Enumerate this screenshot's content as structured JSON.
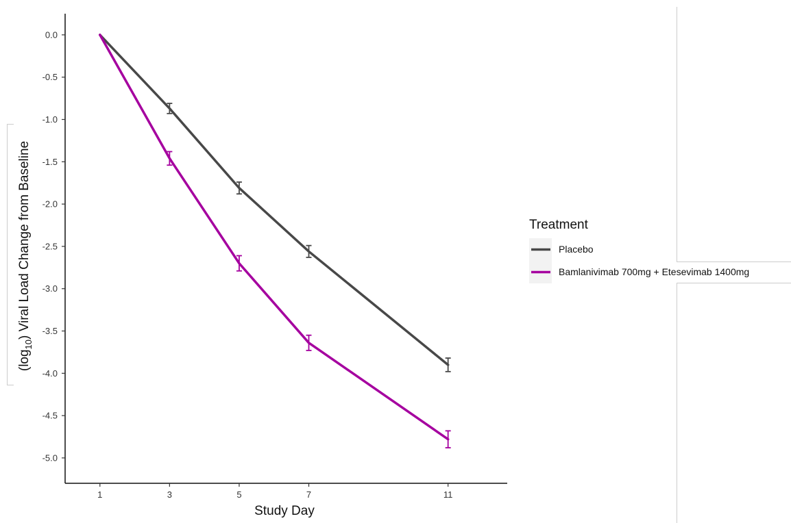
{
  "chart_data": {
    "type": "line",
    "xlabel": "Study Day",
    "ylabel_parts": [
      "(log",
      "10",
      ") Viral Load Change from Baseline"
    ],
    "x": [
      1,
      3,
      5,
      7,
      11
    ],
    "x_ticks": [
      "1",
      "3",
      "5",
      "7",
      "11"
    ],
    "y_ticks": [
      "0.0",
      "-0.5",
      "-1.0",
      "-1.5",
      "-2.0",
      "-2.5",
      "-3.0",
      "-3.5",
      "-4.0",
      "-4.5",
      "-5.0"
    ],
    "xlim": [
      0,
      12.7
    ],
    "ylim": [
      -5.3,
      0.25
    ],
    "grid": false,
    "legend": {
      "title": "Treatment",
      "placement": "right"
    },
    "series": [
      {
        "name": "Placebo",
        "color": "#484848",
        "values": [
          0.0,
          -0.87,
          -1.81,
          -2.56,
          -3.9
        ],
        "error": [
          0.0,
          0.06,
          0.07,
          0.07,
          0.08
        ]
      },
      {
        "name": "Bamlanivimab 700mg + Etesevimab 1400mg",
        "color": "#a5009f",
        "values": [
          0.0,
          -1.46,
          -2.7,
          -3.64,
          -4.78
        ],
        "error": [
          0.0,
          0.08,
          0.09,
          0.09,
          0.1
        ]
      }
    ]
  }
}
